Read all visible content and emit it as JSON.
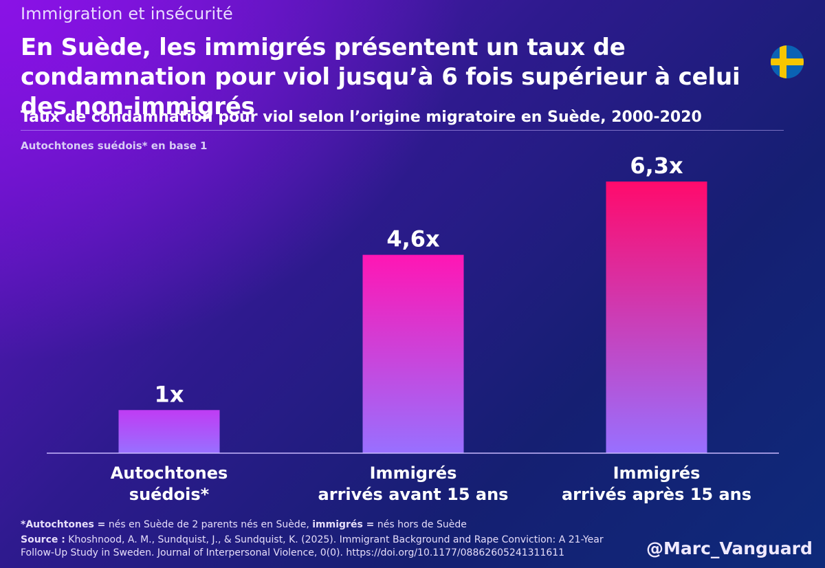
{
  "header": {
    "kicker": "Immigration et insécurité",
    "title": "En Suède, les immigrés présentent un taux de condamnation pour viol jusqu’à 6 fois supérieur à celui des non-immigrés",
    "flag_icon": "sweden-flag-icon"
  },
  "chart_data": {
    "type": "bar",
    "title": "Taux de condamnation pour viol selon l’origine migratoire en Suède, 2000-2020",
    "ylabel": "Autochtones suédois* en base 1",
    "xlabel": "",
    "categories": [
      "Autochtones suédois*",
      "Immigrés arrivés avant 15 ans",
      "Immigrés arrivés après 15 ans"
    ],
    "category_lines": [
      [
        "Autochtones",
        "suédois*"
      ],
      [
        "Immigrés",
        "arrivés avant 15 ans"
      ],
      [
        "Immigrés",
        "arrivés après 15 ans"
      ]
    ],
    "values": [
      1,
      4.6,
      6.3
    ],
    "data_labels": [
      "1x",
      "4,6x",
      "6,3x"
    ],
    "ylim": [
      0,
      6.3
    ],
    "grid": false,
    "colors": {
      "bar_top_low": "#c03cf4",
      "bar_top_mid": "#ff16b4",
      "bar_top_high": "#ff0a6c",
      "bar_bottom": "#9870ff"
    }
  },
  "footer": {
    "footnote_term1": "*Autochtones =",
    "footnote_text1": " nés en Suède de 2 parents nés en Suède, ",
    "footnote_term2": "immigrés =",
    "footnote_text2": " nés hors de Suède",
    "source_label": "Source :",
    "source_text": " Khoshnood, A. M., Sundquist, J., & Sundquist, K. (2025). Immigrant Background and Rape Conviction: A 21-Year Follow-Up Study in Sweden. Journal of Interpersonal Violence, 0(0). https://doi.org/10.1177/08862605241311611",
    "handle": "@Marc_Vanguard"
  }
}
